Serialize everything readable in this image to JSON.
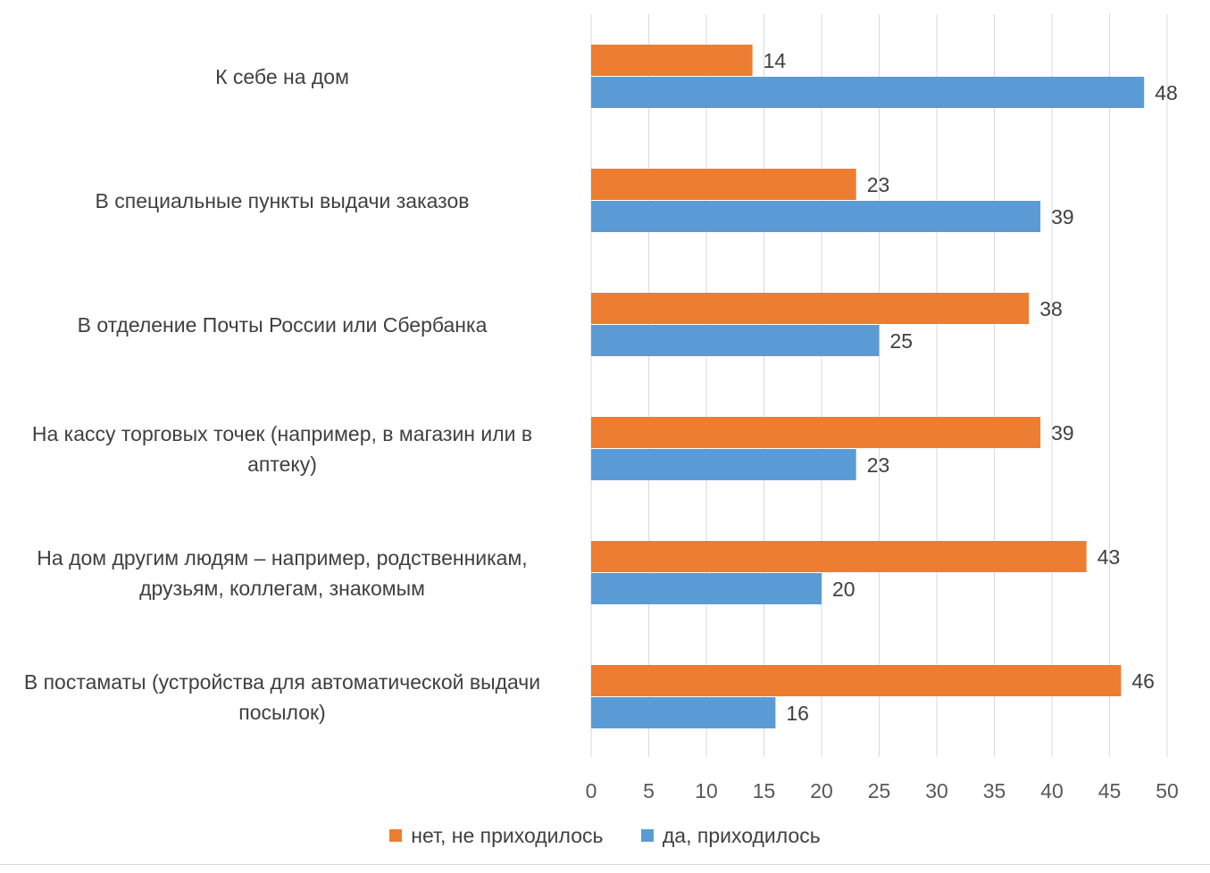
{
  "chart_data": {
    "type": "bar",
    "orientation": "horizontal",
    "categories": [
      "К себе на дом",
      "В специальные пункты выдачи заказов",
      "В отделение Почты России или Сбербанка",
      "На кассу торговых точек (например, в магазин или в аптеку)",
      "На дом другим людям – например, родственникам, друзьям, коллегам, знакомым",
      "В постаматы (устройства для автоматической выдачи посылок)"
    ],
    "series": [
      {
        "name": "нет, не приходилось",
        "color": "#ED7D31",
        "values": [
          14,
          23,
          38,
          39,
          43,
          46
        ]
      },
      {
        "name": "да, приходилось",
        "color": "#5B9BD5",
        "values": [
          48,
          39,
          25,
          23,
          20,
          16
        ]
      }
    ],
    "xlim": [
      0,
      50
    ],
    "xticks": [
      0,
      5,
      10,
      15,
      20,
      25,
      30,
      35,
      40,
      45,
      50
    ],
    "grid": true,
    "legend_position": "bottom",
    "data_labels": true
  }
}
